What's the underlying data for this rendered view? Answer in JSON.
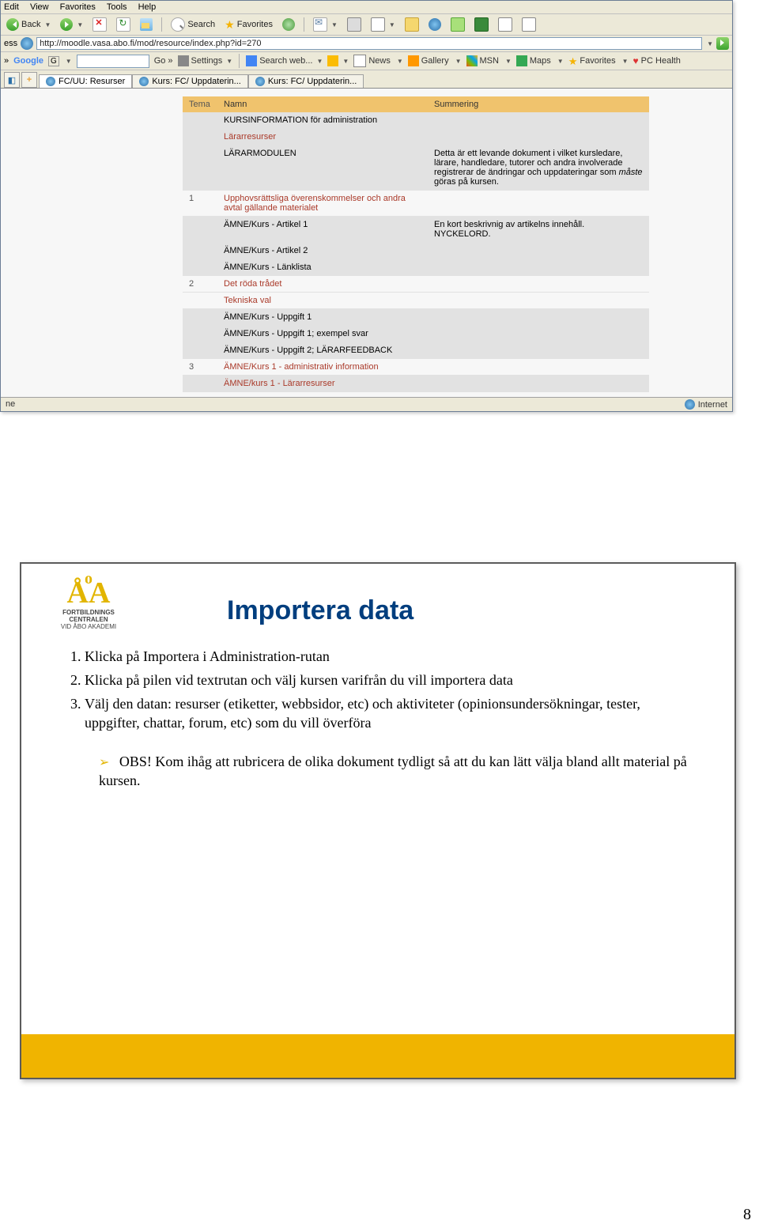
{
  "menubar": [
    "Edit",
    "View",
    "Favorites",
    "Tools",
    "Help"
  ],
  "toolbar": {
    "back": "Back",
    "search": "Search",
    "favorites": "Favorites"
  },
  "address": {
    "label": "ess",
    "url": "http://moodle.vasa.abo.fi/mod/resource/index.php?id=270"
  },
  "googlebar": {
    "brand": "Google",
    "sub": "G",
    "go": "Go",
    "settings": "Settings",
    "searchweb": "Search web...",
    "news": "News",
    "gallery": "Gallery",
    "msn": "MSN",
    "maps": "Maps",
    "favorites": "Favorites",
    "pchealth": "PC Health"
  },
  "tabs": [
    {
      "label": "FC/UU: Resurser",
      "active": true
    },
    {
      "label": "Kurs: FC/ Uppdaterin...",
      "active": false
    },
    {
      "label": "Kurs: FC/ Uppdaterin...",
      "active": false
    }
  ],
  "table": {
    "headers": {
      "tema": "Tema",
      "namn": "Namn",
      "sum": "Summering"
    },
    "rows": [
      {
        "tema": "",
        "namn": "KURSINFORMATION för administration",
        "sum": "",
        "shade": true,
        "red": false
      },
      {
        "tema": "",
        "namn": "Lärarresurser",
        "sum": "",
        "shade": true,
        "red": true
      },
      {
        "tema": "",
        "namn": "LÄRARMODULEN",
        "sum": "Detta är ett levande dokument i vilket kursledare, lärare, handledare, tutorer och andra involverade registrerar de ändringar och uppdateringar som måste göras på kursen.",
        "shade": true,
        "red": false,
        "italic": "måste"
      },
      {
        "tema": "1",
        "namn": "Upphovsrättsliga överenskommelser och andra avtal gällande materialet",
        "sum": "",
        "shade": false,
        "red": true
      },
      {
        "tema": "",
        "namn": "ÄMNE/Kurs - Artikel 1",
        "sum": "En kort beskrivnig av artikelns innehåll. NYCKELORD.",
        "shade": true,
        "red": false
      },
      {
        "tema": "",
        "namn": "ÄMNE/Kurs - Artikel 2",
        "sum": "",
        "shade": true,
        "red": false
      },
      {
        "tema": "",
        "namn": "ÄMNE/Kurs - Länklista",
        "sum": "",
        "shade": true,
        "red": false
      },
      {
        "tema": "2",
        "namn": "Det röda trådet",
        "sum": "",
        "shade": false,
        "red": true
      },
      {
        "tema": "",
        "namn": "Tekniska val",
        "sum": "",
        "shade": false,
        "red": true
      },
      {
        "tema": "",
        "namn": "ÄMNE/Kurs - Uppgift 1",
        "sum": "",
        "shade": true,
        "red": false
      },
      {
        "tema": "",
        "namn": "ÄMNE/Kurs - Uppgift 1; exempel svar",
        "sum": "",
        "shade": true,
        "red": false
      },
      {
        "tema": "",
        "namn": "ÄMNE/Kurs - Uppgift 2; LÄRARFEEDBACK",
        "sum": "",
        "shade": true,
        "red": false
      },
      {
        "tema": "3",
        "namn": "ÄMNE/Kurs 1 - administrativ information",
        "sum": "",
        "shade": false,
        "red": true
      },
      {
        "tema": "",
        "namn": "ÄMNE/kurs 1 - Lärarresurser",
        "sum": "",
        "shade": true,
        "red": true
      }
    ]
  },
  "status": {
    "left": "ne",
    "right": "Internet"
  },
  "slide": {
    "logo_line1": "FORTBILDNINGS",
    "logo_line2": "CENTRALEN",
    "logo_line3": "VID ÅBO AKADEMI",
    "title": "Importera data",
    "steps": [
      "Klicka på Importera i Administration-rutan",
      "Klicka på pilen vid textrutan och välj kursen varifrån du vill importera data",
      "Välj den datan: resurser (etiketter, webbsidor, etc) och aktiviteter (opinionsundersökningar, tester, uppgifter, chattar, forum, etc) som du vill överföra"
    ],
    "obs": "OBS! Kom ihåg att rubricera de olika dokument tydligt så att du kan lätt välja bland allt material på kursen."
  },
  "page_number": "8",
  "colors": {
    "slide_title": "#003e7e",
    "accent_yellow": "#f0b400",
    "table_header": "#f0c36d",
    "link_red": "#aa3a2a"
  }
}
